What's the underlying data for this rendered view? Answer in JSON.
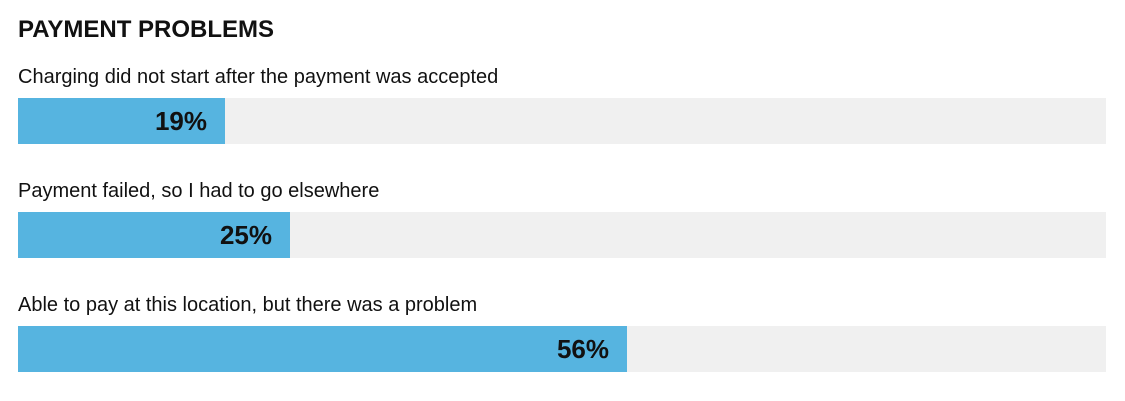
{
  "chart_data": {
    "type": "bar",
    "orientation": "horizontal",
    "title": "PAYMENT PROBLEMS",
    "categories": [
      "Charging did not start after the payment was accepted",
      "Payment failed, so I had to go elsewhere",
      "Able to pay at this location, but there was a problem"
    ],
    "values": [
      19,
      25,
      56
    ],
    "value_labels": [
      "19%",
      "25%",
      "56%"
    ],
    "xlim": [
      0,
      100
    ],
    "grid": false,
    "legend": "none",
    "colors": {
      "bar": "#56b4e0",
      "track": "#f0f0f0",
      "text": "#111111"
    }
  }
}
